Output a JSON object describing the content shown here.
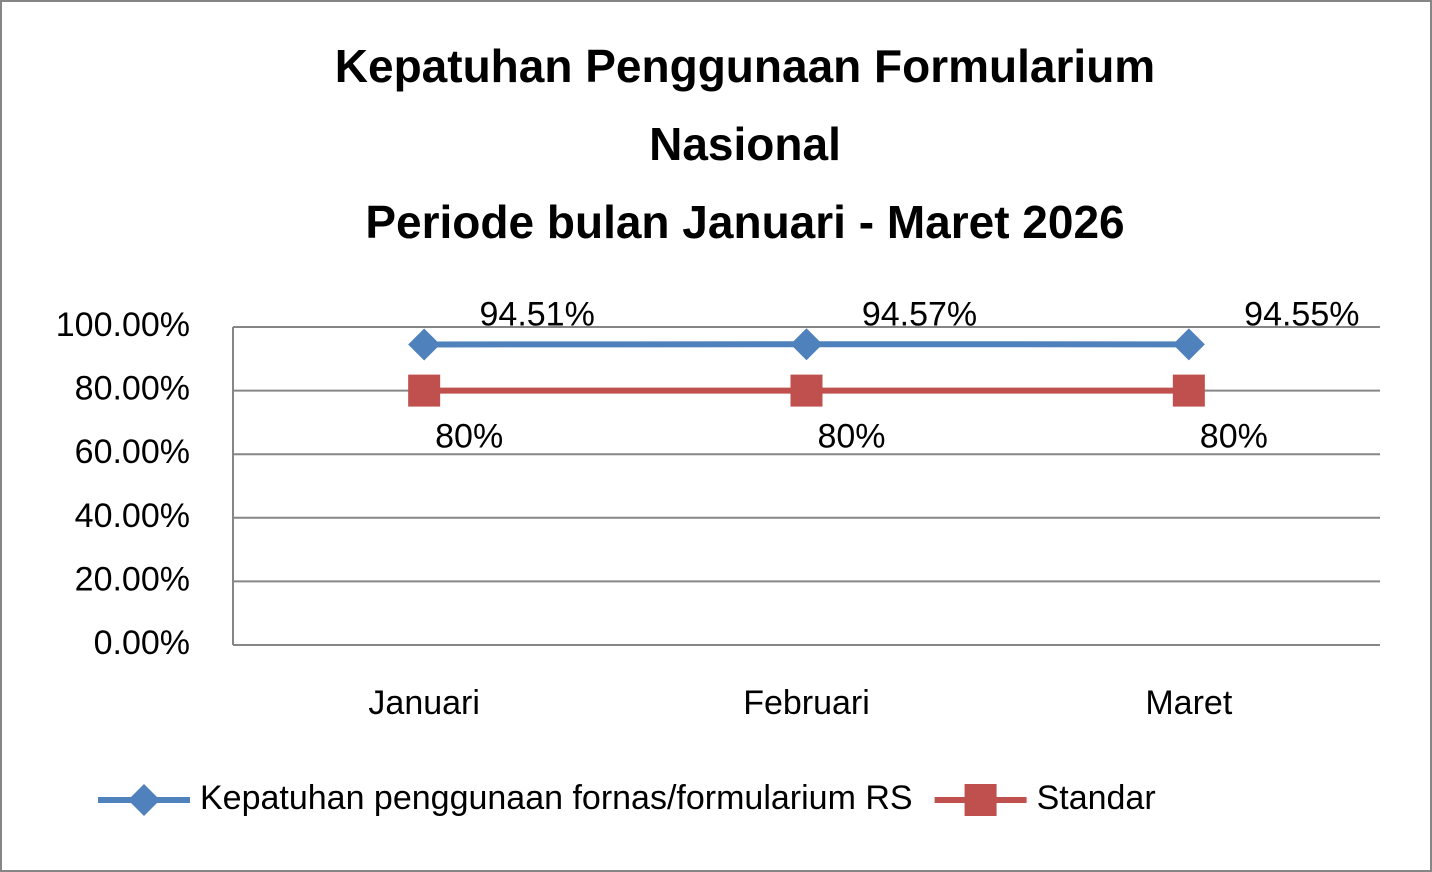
{
  "chart_data": {
    "type": "line",
    "title": [
      "Kepatuhan Penggunaan Formularium",
      "Nasional",
      "Periode bulan Januari - Maret 2026"
    ],
    "categories": [
      "Januari",
      "Februari",
      "Maret"
    ],
    "series": [
      {
        "name": "Kepatuhan penggunaan fornas/formularium RS",
        "color": "#4f81bd",
        "marker": "diamond",
        "values": [
          94.51,
          94.57,
          94.55
        ],
        "value_labels": [
          "94.51%",
          "94.57%",
          "94.55%"
        ]
      },
      {
        "name": "Standar",
        "color": "#c0504d",
        "marker": "square",
        "values": [
          80,
          80,
          80
        ],
        "value_labels": [
          "80%",
          "80%",
          "80%"
        ]
      }
    ],
    "ylim": [
      0,
      100
    ],
    "yticks": [
      {
        "value": 0,
        "label": "0.00%"
      },
      {
        "value": 20,
        "label": "20.00%"
      },
      {
        "value": 40,
        "label": "40.00%"
      },
      {
        "value": 60,
        "label": "60.00%"
      },
      {
        "value": 80,
        "label": "80.00%"
      },
      {
        "value": 100,
        "label": "100.00%"
      }
    ],
    "grid": true,
    "legend": "bottom"
  }
}
